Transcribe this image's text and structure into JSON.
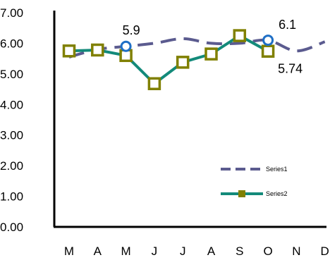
{
  "chart_data": {
    "type": "line",
    "categories": [
      "M",
      "A",
      "M",
      "J",
      "J",
      "A",
      "S",
      "O",
      "N",
      "D"
    ],
    "y_tick_labels": [
      "0.00",
      "1.00",
      "2.00",
      "3.00",
      "4.00",
      "5.00",
      "6.00",
      "7.00"
    ],
    "ylim": [
      0,
      7
    ],
    "grid": false,
    "legend_position": "bottom-right",
    "series": [
      {
        "name": "Series1",
        "values": [
          5.55,
          5.8,
          5.9,
          6.0,
          6.15,
          6.0,
          6.0,
          6.1,
          5.75,
          6.05
        ],
        "color": "#5b5b8f",
        "line_style": "dashed"
      },
      {
        "name": "Series2",
        "values": [
          5.75,
          5.78,
          5.6,
          4.68,
          5.38,
          5.65,
          6.25,
          5.74,
          null,
          null
        ],
        "color": "#138a7a",
        "marker": "square",
        "marker_color": "#808000",
        "line_style": "solid"
      }
    ],
    "highlight_points": [
      {
        "series": "Series1",
        "index": 2,
        "color": "#1f6fc6"
      },
      {
        "series": "Series1",
        "index": 7,
        "color": "#1f6fc6"
      }
    ],
    "annotations": [
      {
        "series": "Series1",
        "index": 2,
        "text": "5.9"
      },
      {
        "series": "Series1",
        "index": 7,
        "text": "6.1"
      },
      {
        "series": "Series2",
        "index": 7,
        "text": "5.74"
      }
    ]
  }
}
